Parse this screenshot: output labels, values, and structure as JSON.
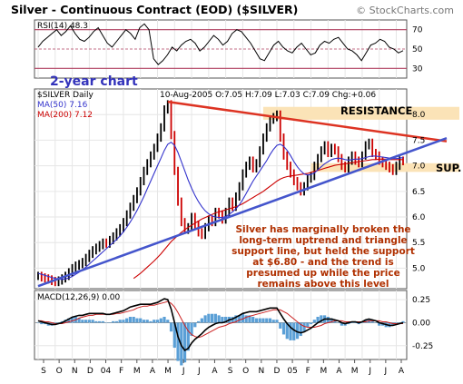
{
  "header": {
    "title": "Silver - Continuous Contract (EOD) ($SILVER)",
    "credit": "© StockCharts.com"
  },
  "colors": {
    "price": "#000000",
    "up_bar": "#000000",
    "down_bar": "#cc0000",
    "ma50": "#3333cc",
    "ma200": "#cc0000",
    "resistance_line": "#dd3322",
    "support_line": "#4455cc",
    "zone": "#fbe3b7",
    "annotation": "#b03000",
    "rsi_band": "#b04060",
    "macd_hist": "#5a9fd6"
  },
  "chart_data": [
    {
      "type": "line",
      "panel": "rsi",
      "label": "RSI(14) 48.3",
      "ylim": [
        20,
        80
      ],
      "y_ticks": [
        30,
        50,
        70
      ],
      "reference_lines": [
        30,
        50,
        70
      ],
      "values": [
        52,
        58,
        62,
        66,
        70,
        64,
        68,
        74,
        66,
        60,
        58,
        62,
        68,
        72,
        64,
        56,
        52,
        58,
        64,
        70,
        66,
        60,
        72,
        76,
        70,
        40,
        34,
        38,
        44,
        52,
        48,
        54,
        58,
        60,
        56,
        48,
        52,
        58,
        64,
        60,
        54,
        58,
        66,
        70,
        68,
        62,
        56,
        48,
        40,
        38,
        46,
        54,
        58,
        52,
        48,
        46,
        52,
        56,
        50,
        44,
        46,
        54,
        58,
        56,
        60,
        62,
        56,
        50,
        48,
        44,
        38,
        46,
        54,
        56,
        60,
        58,
        52,
        50,
        46,
        48.3
      ]
    },
    {
      "type": "line",
      "panel": "price",
      "label": "$SILVER Daily",
      "info": "10-Aug-2005  O:7.05  H:7.09  L:7.03  C:7.09  Chg:+0.06",
      "ylim": [
        4.6,
        8.5
      ],
      "y_ticks": [
        5.0,
        5.5,
        6.0,
        6.5,
        7.0,
        7.5,
        8.0
      ],
      "price": [
        4.85,
        4.82,
        4.8,
        4.78,
        4.75,
        4.73,
        4.76,
        4.8,
        4.85,
        4.92,
        5.0,
        5.05,
        5.08,
        5.12,
        5.2,
        5.28,
        5.35,
        5.4,
        5.45,
        5.5,
        5.48,
        5.55,
        5.62,
        5.7,
        5.78,
        5.9,
        6.05,
        6.2,
        6.35,
        6.5,
        6.7,
        6.9,
        7.05,
        7.2,
        7.35,
        7.55,
        7.75,
        8.1,
        8.2,
        7.6,
        6.9,
        6.3,
        5.9,
        5.75,
        5.8,
        6.0,
        5.85,
        5.7,
        5.65,
        5.8,
        5.95,
        5.9,
        6.1,
        6.05,
        5.95,
        6.1,
        6.3,
        6.2,
        6.4,
        6.6,
        6.85,
        7.0,
        7.1,
        6.95,
        7.05,
        7.3,
        7.55,
        7.75,
        7.9,
        7.95,
        8.0,
        7.55,
        7.2,
        7.0,
        6.85,
        6.7,
        6.6,
        6.5,
        6.6,
        6.75,
        6.8,
        7.0,
        7.15,
        7.3,
        7.4,
        7.25,
        7.35,
        7.3,
        7.15,
        7.0,
        6.95,
        7.1,
        7.2,
        7.1,
        7.05,
        7.2,
        7.4,
        7.45,
        7.25,
        7.2,
        7.1,
        7.05,
        7.0,
        6.95,
        6.9,
        7.0,
        7.1,
        7.09
      ],
      "ma50": [
        4.9,
        4.88,
        4.86,
        4.84,
        4.82,
        4.8,
        4.79,
        4.78,
        4.79,
        4.81,
        4.84,
        4.88,
        4.92,
        4.97,
        5.02,
        5.08,
        5.14,
        5.2,
        5.26,
        5.32,
        5.38,
        5.44,
        5.5,
        5.56,
        5.63,
        5.71,
        5.8,
        5.9,
        6.01,
        6.13,
        6.26,
        6.4,
        6.55,
        6.7,
        6.85,
        7.0,
        7.15,
        7.3,
        7.42,
        7.46,
        7.4,
        7.26,
        7.08,
        6.9,
        6.72,
        6.56,
        6.42,
        6.3,
        6.2,
        6.12,
        6.06,
        6.02,
        6.0,
        5.99,
        5.99,
        6.01,
        6.05,
        6.1,
        6.16,
        6.24,
        6.34,
        6.46,
        6.58,
        6.7,
        6.8,
        6.9,
        7.0,
        7.1,
        7.22,
        7.32,
        7.4,
        7.42,
        7.38,
        7.3,
        7.2,
        7.08,
        6.98,
        6.9,
        6.84,
        6.82,
        6.83,
        6.86,
        6.92,
        6.98,
        7.04,
        7.08,
        7.12,
        7.14,
        7.15,
        7.14,
        7.12,
        7.11,
        7.12,
        7.13,
        7.13,
        7.14,
        7.16,
        7.18,
        7.19,
        7.19,
        7.18,
        7.17,
        7.16,
        7.15,
        7.14,
        7.14,
        7.15,
        7.16
      ],
      "ma200": [
        null,
        null,
        null,
        null,
        null,
        null,
        null,
        null,
        null,
        null,
        null,
        null,
        null,
        null,
        null,
        null,
        null,
        null,
        null,
        null,
        null,
        null,
        null,
        null,
        null,
        null,
        null,
        null,
        4.8,
        4.85,
        4.9,
        4.96,
        5.02,
        5.08,
        5.14,
        5.21,
        5.28,
        5.36,
        5.44,
        5.52,
        5.58,
        5.64,
        5.7,
        5.75,
        5.8,
        5.84,
        5.88,
        5.92,
        5.96,
        5.99,
        6.02,
        6.05,
        6.08,
        6.1,
        6.12,
        6.14,
        6.16,
        6.18,
        6.2,
        6.23,
        6.26,
        6.3,
        6.34,
        6.38,
        6.42,
        6.46,
        6.5,
        6.55,
        6.6,
        6.65,
        6.7,
        6.74,
        6.77,
        6.79,
        6.8,
        6.81,
        6.82,
        6.83,
        6.84,
        6.85,
        6.87,
        6.89,
        6.91,
        6.93,
        6.95,
        6.97,
        6.99,
        7.01,
        7.02,
        7.03,
        7.04,
        7.05,
        7.06,
        7.07,
        7.08,
        7.09,
        7.1,
        7.11,
        7.12,
        7.12,
        7.13,
        7.13,
        7.13,
        7.12,
        7.12,
        7.12,
        7.12,
        7.12
      ],
      "ma50_label": "MA(50) 7.16",
      "ma200_label": "MA(200) 7.12",
      "resistance_line": {
        "from": [
          38,
          8.25
        ],
        "to": [
          109,
          7.58
        ]
      },
      "support_line": {
        "from": [
          0,
          4.65
        ],
        "to": [
          109,
          7.28
        ]
      },
      "resistance_zone": [
        7.9,
        8.15
      ],
      "support_zone": [
        6.88,
        7.05
      ],
      "labels": {
        "resistance": "RESISTANCE",
        "support": "SUP.",
        "period": "2-year chart",
        "comment": [
          "Silver has marginally broken the",
          "long-term uptrend and triangle",
          "support line, but held the support",
          "at $6.80 - and the trend is",
          "presumed up while the price",
          "remains above this level"
        ]
      }
    },
    {
      "type": "line",
      "panel": "macd",
      "label": "MACD(12,26,9) 0.00",
      "ylim": [
        -0.4,
        0.35
      ],
      "y_ticks": [
        "0.25",
        "0.00",
        "-0.25"
      ],
      "macd": [
        0.02,
        0.01,
        0.0,
        -0.01,
        -0.02,
        -0.02,
        -0.01,
        0.0,
        0.02,
        0.04,
        0.06,
        0.07,
        0.08,
        0.08,
        0.09,
        0.1,
        0.1,
        0.1,
        0.1,
        0.1,
        0.09,
        0.09,
        0.1,
        0.11,
        0.12,
        0.13,
        0.15,
        0.17,
        0.18,
        0.19,
        0.2,
        0.2,
        0.2,
        0.2,
        0.21,
        0.22,
        0.24,
        0.26,
        0.25,
        0.15,
        0.0,
        -0.15,
        -0.25,
        -0.3,
        -0.28,
        -0.22,
        -0.18,
        -0.15,
        -0.12,
        -0.08,
        -0.05,
        -0.03,
        -0.01,
        0.0,
        0.0,
        0.01,
        0.03,
        0.04,
        0.06,
        0.08,
        0.1,
        0.11,
        0.12,
        0.12,
        0.12,
        0.13,
        0.14,
        0.15,
        0.16,
        0.16,
        0.16,
        0.1,
        0.04,
        -0.01,
        -0.05,
        -0.08,
        -0.1,
        -0.11,
        -0.1,
        -0.08,
        -0.06,
        -0.03,
        0.0,
        0.02,
        0.04,
        0.04,
        0.04,
        0.03,
        0.02,
        0.0,
        -0.01,
        0.0,
        0.01,
        0.01,
        0.0,
        0.01,
        0.03,
        0.04,
        0.03,
        0.02,
        0.0,
        -0.01,
        -0.02,
        -0.03,
        -0.03,
        -0.02,
        -0.01,
        0.0
      ],
      "signal": [
        0.02,
        0.02,
        0.01,
        0.01,
        0.0,
        -0.01,
        -0.01,
        -0.01,
        0.0,
        0.01,
        0.02,
        0.03,
        0.05,
        0.06,
        0.07,
        0.08,
        0.08,
        0.09,
        0.09,
        0.09,
        0.09,
        0.09,
        0.09,
        0.1,
        0.1,
        0.11,
        0.12,
        0.13,
        0.14,
        0.16,
        0.17,
        0.18,
        0.18,
        0.19,
        0.19,
        0.2,
        0.21,
        0.22,
        0.23,
        0.21,
        0.17,
        0.11,
        0.04,
        -0.03,
        -0.09,
        -0.13,
        -0.15,
        -0.16,
        -0.15,
        -0.13,
        -0.11,
        -0.09,
        -0.07,
        -0.05,
        -0.04,
        -0.03,
        -0.01,
        0.0,
        0.01,
        0.03,
        0.04,
        0.06,
        0.07,
        0.08,
        0.09,
        0.1,
        0.11,
        0.12,
        0.13,
        0.14,
        0.14,
        0.14,
        0.12,
        0.1,
        0.07,
        0.04,
        0.01,
        -0.02,
        -0.04,
        -0.05,
        -0.05,
        -0.05,
        -0.04,
        -0.03,
        -0.01,
        0.0,
        0.01,
        0.02,
        0.02,
        0.02,
        0.01,
        0.01,
        0.01,
        0.01,
        0.01,
        0.01,
        0.01,
        0.02,
        0.02,
        0.02,
        0.02,
        0.01,
        0.01,
        0.0,
        -0.01,
        -0.01,
        -0.01,
        -0.01
      ]
    }
  ],
  "x_axis": {
    "tick_labels": [
      "S",
      "O",
      "N",
      "D",
      "04",
      "F",
      "M",
      "A",
      "M",
      "J",
      "J",
      "A",
      "S",
      "O",
      "N",
      "D",
      "05",
      "F",
      "M",
      "A",
      "M",
      "J",
      "J",
      "A"
    ]
  }
}
